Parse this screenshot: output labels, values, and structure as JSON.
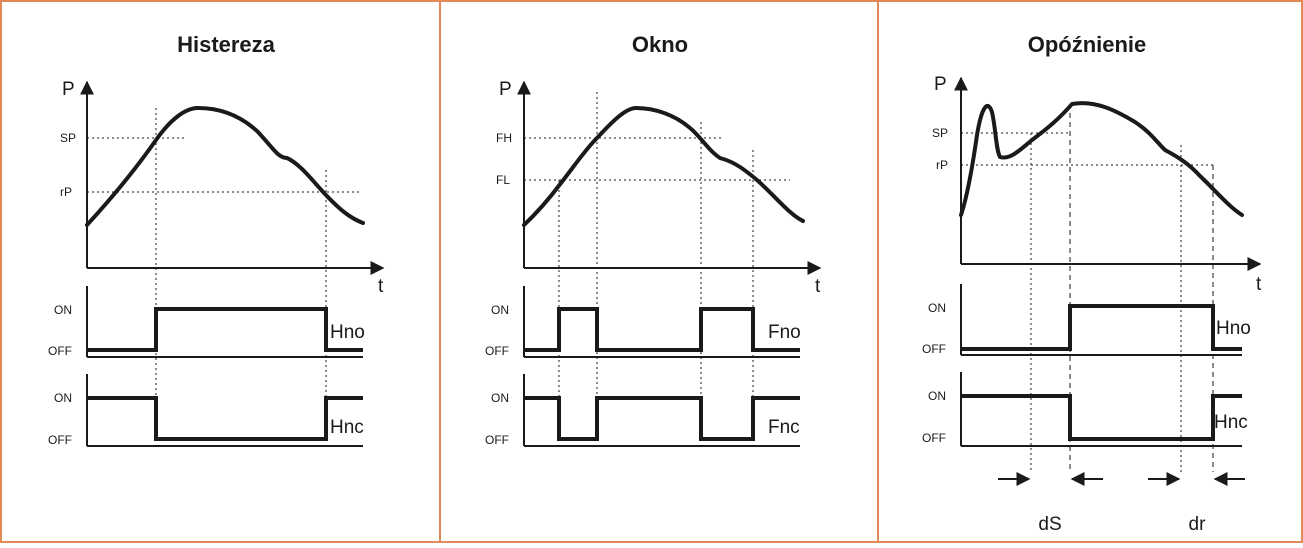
{
  "panels": [
    {
      "title": "Histereza",
      "levels": [
        "SP",
        "rP"
      ],
      "output_top": "Hno",
      "output_bottom": "Hnc"
    },
    {
      "title": "Okno",
      "levels": [
        "FH",
        "FL"
      ],
      "output_top": "Fno",
      "output_bottom": "Fnc"
    },
    {
      "title": "Opóźnienie",
      "levels": [
        "SP",
        "rP"
      ],
      "output_top": "Hno",
      "output_bottom": "Hnc",
      "delays": [
        "dS",
        "dr"
      ]
    }
  ],
  "axes": {
    "y": "P",
    "x": "t"
  },
  "states": {
    "on": "ON",
    "off": "OFF"
  },
  "colors": {
    "border": "#e08a58",
    "ink": "#1a1a1a"
  }
}
